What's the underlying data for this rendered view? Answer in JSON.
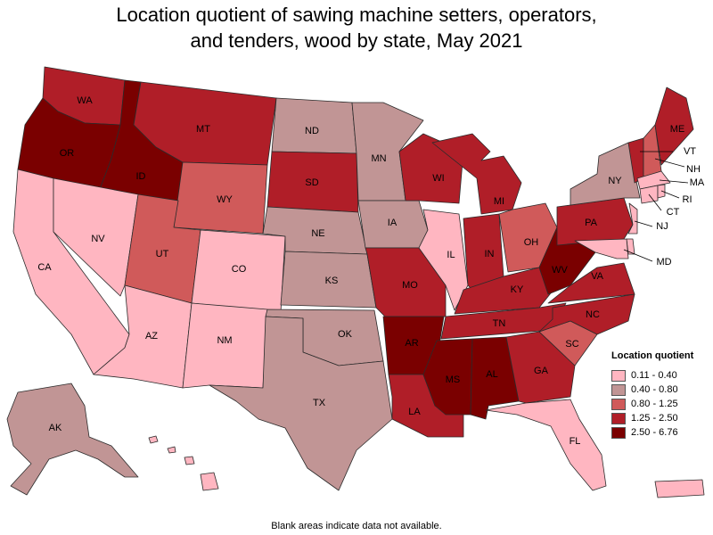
{
  "title_line1": "Location quotient of sawing machine setters, operators,",
  "title_line2": "and tenders, wood by state, May 2021",
  "legend": {
    "title": "Location quotient",
    "bins": [
      {
        "label": "0.11 - 0.40",
        "color": "#ffb6c1"
      },
      {
        "label": "0.40 - 0.80",
        "color": "#c19595"
      },
      {
        "label": "0.80 - 1.25",
        "color": "#d05a5a"
      },
      {
        "label": "1.25 - 2.50",
        "color": "#b01e28"
      },
      {
        "label": "2.50 - 6.76",
        "color": "#7a0000"
      }
    ]
  },
  "footnote": "Blank areas indicate data not available.",
  "states": [
    {
      "abbr": "WA",
      "bin": 3
    },
    {
      "abbr": "OR",
      "bin": 4
    },
    {
      "abbr": "CA",
      "bin": 0
    },
    {
      "abbr": "ID",
      "bin": 4
    },
    {
      "abbr": "NV",
      "bin": 0
    },
    {
      "abbr": "MT",
      "bin": 3
    },
    {
      "abbr": "WY",
      "bin": 2
    },
    {
      "abbr": "UT",
      "bin": 2
    },
    {
      "abbr": "AZ",
      "bin": 0
    },
    {
      "abbr": "CO",
      "bin": 0
    },
    {
      "abbr": "NM",
      "bin": 0
    },
    {
      "abbr": "ND",
      "bin": 1
    },
    {
      "abbr": "SD",
      "bin": 3
    },
    {
      "abbr": "NE",
      "bin": 1
    },
    {
      "abbr": "KS",
      "bin": 1
    },
    {
      "abbr": "OK",
      "bin": 1
    },
    {
      "abbr": "TX",
      "bin": 1
    },
    {
      "abbr": "MN",
      "bin": 1
    },
    {
      "abbr": "IA",
      "bin": 1
    },
    {
      "abbr": "MO",
      "bin": 3
    },
    {
      "abbr": "AR",
      "bin": 4
    },
    {
      "abbr": "LA",
      "bin": 3
    },
    {
      "abbr": "WI",
      "bin": 3
    },
    {
      "abbr": "IL",
      "bin": 0
    },
    {
      "abbr": "MI",
      "bin": 3
    },
    {
      "abbr": "IN",
      "bin": 3
    },
    {
      "abbr": "OH",
      "bin": 2
    },
    {
      "abbr": "KY",
      "bin": 3
    },
    {
      "abbr": "TN",
      "bin": 3
    },
    {
      "abbr": "MS",
      "bin": 4
    },
    {
      "abbr": "AL",
      "bin": 4
    },
    {
      "abbr": "GA",
      "bin": 3
    },
    {
      "abbr": "FL",
      "bin": 0
    },
    {
      "abbr": "SC",
      "bin": 2
    },
    {
      "abbr": "NC",
      "bin": 3
    },
    {
      "abbr": "VA",
      "bin": 3
    },
    {
      "abbr": "WV",
      "bin": 4
    },
    {
      "abbr": "PA",
      "bin": 3
    },
    {
      "abbr": "NY",
      "bin": 1
    },
    {
      "abbr": "VT",
      "bin": 3
    },
    {
      "abbr": "NH",
      "bin": 2
    },
    {
      "abbr": "ME",
      "bin": 3
    },
    {
      "abbr": "MA",
      "bin": 0
    },
    {
      "abbr": "CT",
      "bin": 0
    },
    {
      "abbr": "RI",
      "bin": 0
    },
    {
      "abbr": "NJ",
      "bin": 0
    },
    {
      "abbr": "DE",
      "bin": 0
    },
    {
      "abbr": "MD",
      "bin": 0
    },
    {
      "abbr": "AK",
      "bin": 1
    },
    {
      "abbr": "HI",
      "bin": 0
    },
    {
      "abbr": "PR",
      "bin": 0
    }
  ]
}
